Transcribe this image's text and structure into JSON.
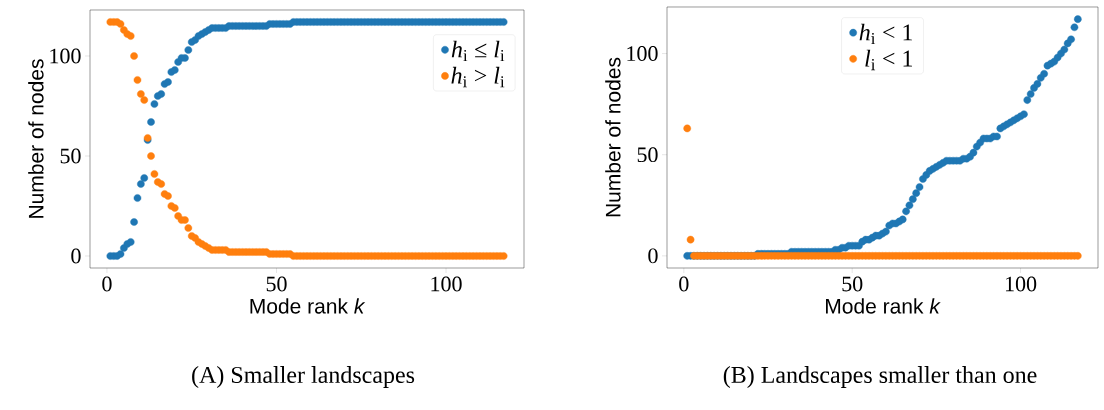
{
  "chart_data": [
    {
      "type": "scatter",
      "xlabel": "Mode rank *k*",
      "ylabel": "Number of nodes",
      "xlim": [
        -5,
        123
      ],
      "ylim": [
        -6,
        123
      ],
      "xticks": [
        0,
        50,
        100
      ],
      "yticks": [
        0,
        50,
        100
      ],
      "marker": "circle",
      "legend": "top right",
      "annotations": [
        "(A) Smaller landscapes"
      ],
      "x": [
        1,
        2,
        3,
        4,
        5,
        6,
        7,
        8,
        9,
        10,
        11,
        12,
        13,
        14,
        15,
        16,
        17,
        18,
        19,
        20,
        21,
        22,
        23,
        24,
        25,
        26,
        27,
        28,
        29,
        30,
        31,
        32,
        33,
        34,
        35,
        36,
        37,
        38,
        39,
        40,
        41,
        42,
        43,
        44,
        45,
        46,
        47,
        48,
        49,
        50,
        51,
        52,
        53,
        54,
        55,
        56,
        57,
        58,
        59,
        60,
        61,
        62,
        63,
        64,
        65,
        66,
        67,
        68,
        69,
        70,
        71,
        72,
        73,
        74,
        75,
        76,
        77,
        78,
        79,
        80,
        81,
        82,
        83,
        84,
        85,
        86,
        87,
        88,
        89,
        90,
        91,
        92,
        93,
        94,
        95,
        96,
        97,
        98,
        99,
        100,
        101,
        102,
        103,
        104,
        105,
        106,
        107,
        108,
        109,
        110,
        111,
        112,
        113,
        114,
        115,
        116,
        117
      ],
      "series": [
        {
          "name": "*h*$_{i}$ ≤ *l*$_{i}$",
          "color": "#1f77b4",
          "values": [
            0,
            0,
            0,
            1,
            4,
            6,
            7,
            17,
            29,
            36,
            39,
            58,
            67,
            76,
            80,
            81,
            86,
            87,
            92,
            93,
            97,
            99,
            99,
            103,
            107,
            108,
            110,
            111,
            112,
            113,
            114,
            114,
            114,
            114,
            114,
            115,
            115,
            115,
            115,
            115,
            115,
            115,
            115,
            115,
            115,
            115,
            115,
            116,
            116,
            116,
            116,
            116,
            116,
            116,
            117,
            117,
            117,
            117,
            117,
            117,
            117,
            117,
            117,
            117,
            117,
            117,
            117,
            117,
            117,
            117,
            117,
            117,
            117,
            117,
            117,
            117,
            117,
            117,
            117,
            117,
            117,
            117,
            117,
            117,
            117,
            117,
            117,
            117,
            117,
            117,
            117,
            117,
            117,
            117,
            117,
            117,
            117,
            117,
            117,
            117,
            117,
            117,
            117,
            117,
            117,
            117,
            117,
            117,
            117,
            117,
            117,
            117,
            117,
            117,
            117,
            117,
            117
          ]
        },
        {
          "name": "*h*$_{i}$ > *l*$_{i}$",
          "color": "#ff7f0e",
          "values": [
            117,
            117,
            117,
            116,
            113,
            111,
            110,
            100,
            88,
            81,
            78,
            59,
            50,
            41,
            37,
            36,
            31,
            30,
            25,
            24,
            20,
            18,
            18,
            14,
            10,
            9,
            7,
            6,
            5,
            4,
            3,
            3,
            3,
            3,
            3,
            2,
            2,
            2,
            2,
            2,
            2,
            2,
            2,
            2,
            2,
            2,
            2,
            1,
            1,
            1,
            1,
            1,
            1,
            1,
            0,
            0,
            0,
            0,
            0,
            0,
            0,
            0,
            0,
            0,
            0,
            0,
            0,
            0,
            0,
            0,
            0,
            0,
            0,
            0,
            0,
            0,
            0,
            0,
            0,
            0,
            0,
            0,
            0,
            0,
            0,
            0,
            0,
            0,
            0,
            0,
            0,
            0,
            0,
            0,
            0,
            0,
            0,
            0,
            0,
            0,
            0,
            0,
            0,
            0,
            0,
            0,
            0,
            0,
            0,
            0,
            0,
            0,
            0,
            0,
            0,
            0,
            0
          ]
        }
      ]
    },
    {
      "type": "scatter",
      "xlabel": "Mode rank *k*",
      "ylabel": "Number of nodes",
      "xlim": [
        -5,
        123
      ],
      "ylim": [
        -6,
        123
      ],
      "xticks": [
        0,
        50,
        100
      ],
      "yticks": [
        0,
        50,
        100
      ],
      "marker": "circle",
      "legend": "top",
      "annotations": [
        "(B) Landscapes smaller than one"
      ],
      "x": [
        1,
        2,
        3,
        4,
        5,
        6,
        7,
        8,
        9,
        10,
        11,
        12,
        13,
        14,
        15,
        16,
        17,
        18,
        19,
        20,
        21,
        22,
        23,
        24,
        25,
        26,
        27,
        28,
        29,
        30,
        31,
        32,
        33,
        34,
        35,
        36,
        37,
        38,
        39,
        40,
        41,
        42,
        43,
        44,
        45,
        46,
        47,
        48,
        49,
        50,
        51,
        52,
        53,
        54,
        55,
        56,
        57,
        58,
        59,
        60,
        61,
        62,
        63,
        64,
        65,
        66,
        67,
        68,
        69,
        70,
        71,
        72,
        73,
        74,
        75,
        76,
        77,
        78,
        79,
        80,
        81,
        82,
        83,
        84,
        85,
        86,
        87,
        88,
        89,
        90,
        91,
        92,
        93,
        94,
        95,
        96,
        97,
        98,
        99,
        100,
        101,
        102,
        103,
        104,
        105,
        106,
        107,
        108,
        109,
        110,
        111,
        112,
        113,
        114,
        115,
        116,
        117
      ],
      "series": [
        {
          "name": "*h*$_{i}$ < 1",
          "color": "#1f77b4",
          "values": [
            0,
            0,
            0,
            0,
            0,
            0,
            0,
            0,
            0,
            0,
            0,
            0,
            0,
            0,
            0,
            0,
            0,
            0,
            0,
            0,
            0,
            1,
            1,
            1,
            1,
            1,
            1,
            1,
            1,
            1,
            1,
            2,
            2,
            2,
            2,
            2,
            2,
            2,
            2,
            2,
            2,
            2,
            2,
            2,
            3,
            3,
            4,
            4,
            5,
            5,
            5,
            5,
            7,
            8,
            8,
            9,
            10,
            10,
            11,
            12,
            15,
            16,
            16,
            17,
            18,
            22,
            25,
            28,
            31,
            34,
            38,
            40,
            42,
            43,
            44,
            45,
            46,
            47,
            47,
            47,
            47,
            47,
            48,
            48,
            49,
            51,
            54,
            56,
            58,
            58,
            58,
            59,
            59,
            63,
            64,
            65,
            66,
            67,
            68,
            69,
            70,
            77,
            80,
            83,
            85,
            88,
            90,
            94,
            95,
            96,
            98,
            100,
            102,
            105,
            107,
            113,
            117
          ]
        },
        {
          "name": "*l*$_{i}$ < 1",
          "color": "#ff7f0e",
          "values": [
            63,
            8,
            0,
            0,
            0,
            0,
            0,
            0,
            0,
            0,
            0,
            0,
            0,
            0,
            0,
            0,
            0,
            0,
            0,
            0,
            0,
            0,
            0,
            0,
            0,
            0,
            0,
            0,
            0,
            0,
            0,
            0,
            0,
            0,
            0,
            0,
            0,
            0,
            0,
            0,
            0,
            0,
            0,
            0,
            0,
            0,
            0,
            0,
            0,
            0,
            0,
            0,
            0,
            0,
            0,
            0,
            0,
            0,
            0,
            0,
            0,
            0,
            0,
            0,
            0,
            0,
            0,
            0,
            0,
            0,
            0,
            0,
            0,
            0,
            0,
            0,
            0,
            0,
            0,
            0,
            0,
            0,
            0,
            0,
            0,
            0,
            0,
            0,
            0,
            0,
            0,
            0,
            0,
            0,
            0,
            0,
            0,
            0,
            0,
            0,
            0,
            0,
            0,
            0,
            0,
            0,
            0,
            0,
            0,
            0,
            0,
            0,
            0,
            0,
            0,
            0,
            0
          ]
        }
      ]
    }
  ]
}
